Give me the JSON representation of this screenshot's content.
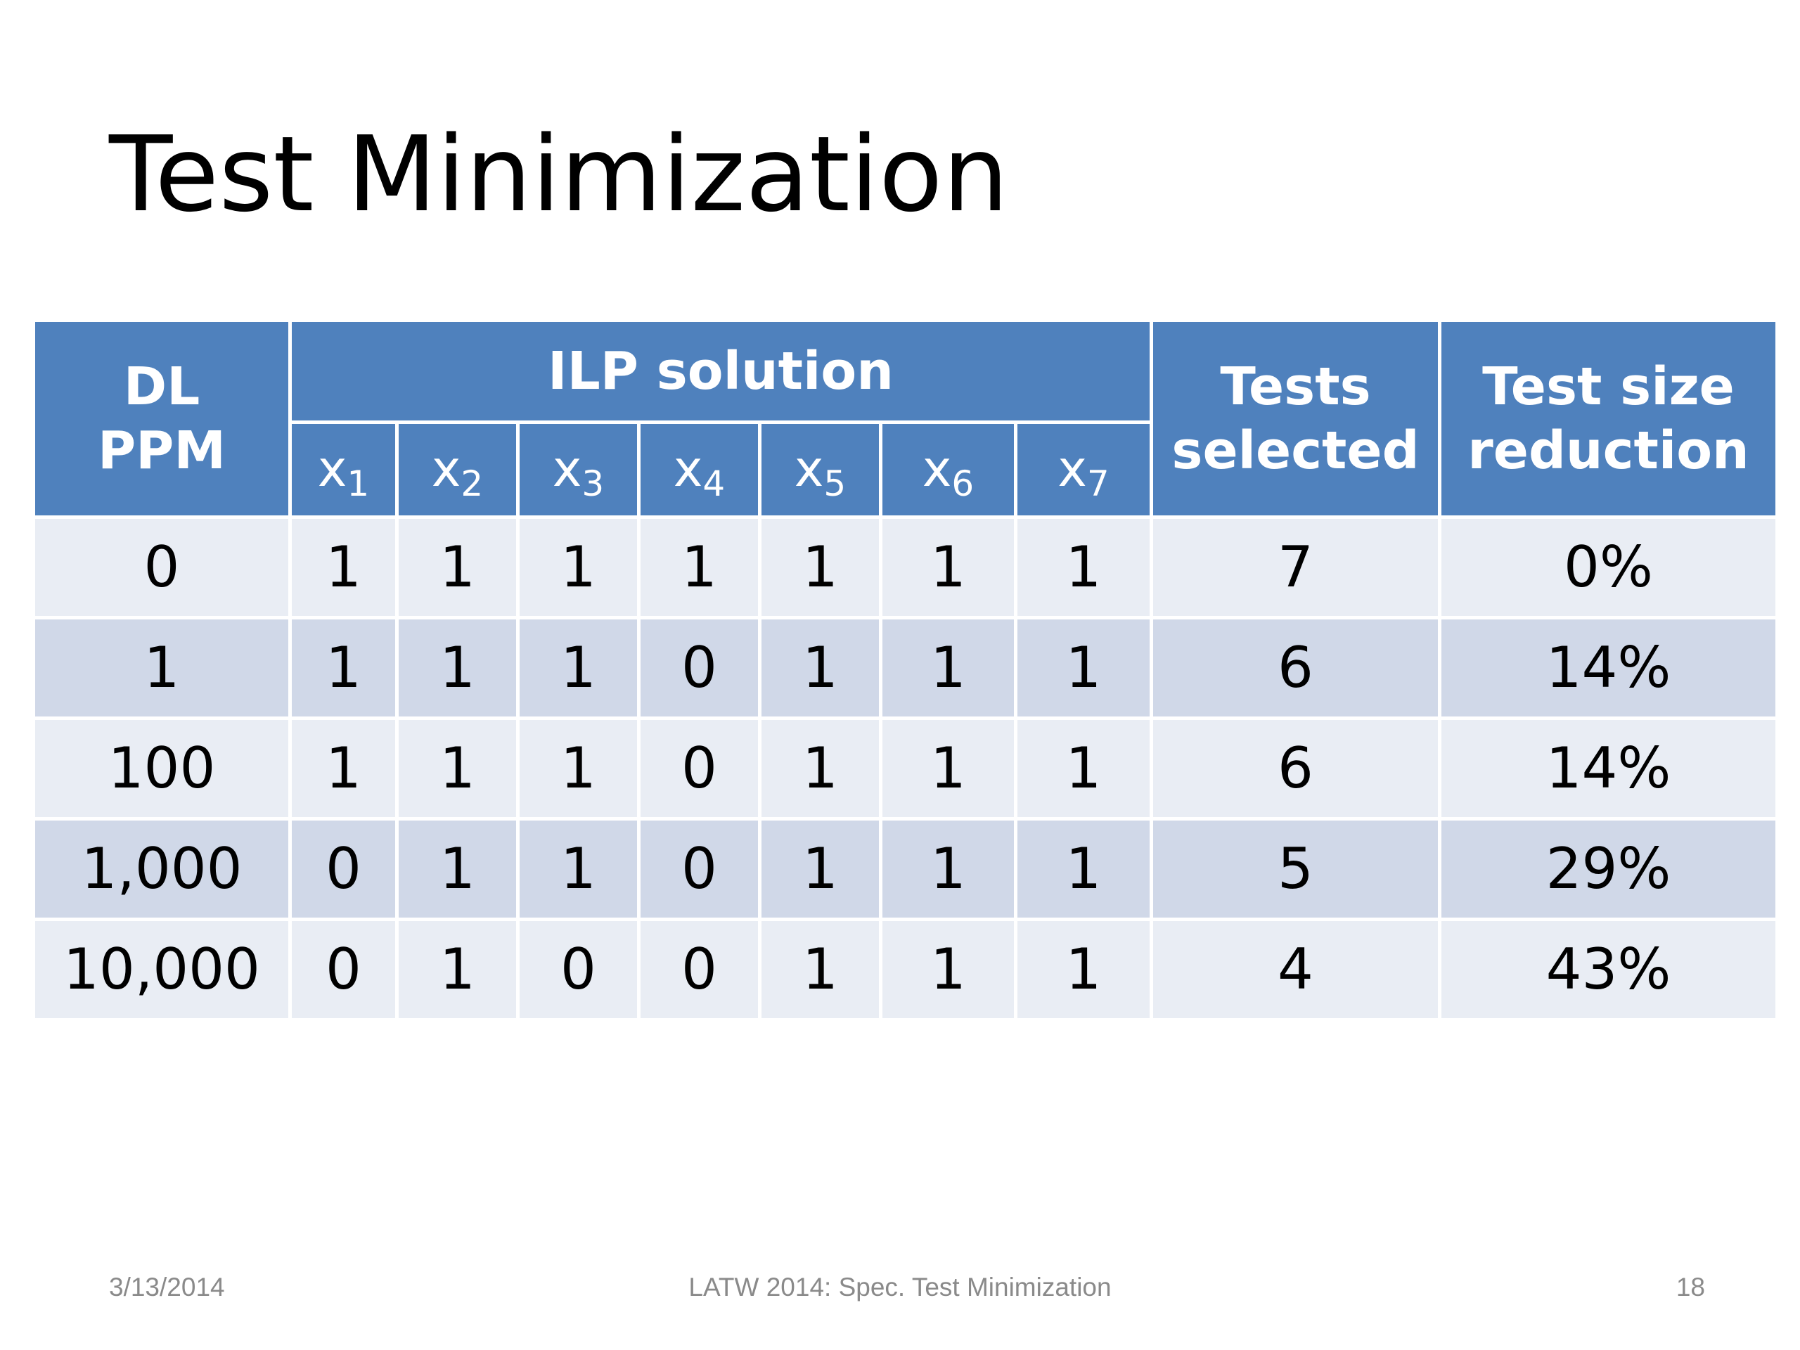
{
  "title": "Test Minimization",
  "table": {
    "headers": {
      "dl_ppm_line1": "DL",
      "dl_ppm_line2": "PPM",
      "ilp_solution": "ILP solution",
      "variables": [
        {
          "base": "x",
          "sub": "1"
        },
        {
          "base": "x",
          "sub": "2"
        },
        {
          "base": "x",
          "sub": "3"
        },
        {
          "base": "x",
          "sub": "4"
        },
        {
          "base": "x",
          "sub": "5"
        },
        {
          "base": "x",
          "sub": "6"
        },
        {
          "base": "x",
          "sub": "7"
        }
      ],
      "tests_selected_line1": "Tests",
      "tests_selected_line2": "selected",
      "test_size_reduction_line1": "Test size",
      "test_size_reduction_line2": "reduction"
    },
    "rows": [
      {
        "ppm": "0",
        "x": [
          "1",
          "1",
          "1",
          "1",
          "1",
          "1",
          "1"
        ],
        "tests": "7",
        "reduction": "0%"
      },
      {
        "ppm": "1",
        "x": [
          "1",
          "1",
          "1",
          "0",
          "1",
          "1",
          "1"
        ],
        "tests": "6",
        "reduction": "14%"
      },
      {
        "ppm": "100",
        "x": [
          "1",
          "1",
          "1",
          "0",
          "1",
          "1",
          "1"
        ],
        "tests": "6",
        "reduction": "14%"
      },
      {
        "ppm": "1,000",
        "x": [
          "0",
          "1",
          "1",
          "0",
          "1",
          "1",
          "1"
        ],
        "tests": "5",
        "reduction": "29%"
      },
      {
        "ppm": "10,000",
        "x": [
          "0",
          "1",
          "0",
          "0",
          "1",
          "1",
          "1"
        ],
        "tests": "4",
        "reduction": "43%"
      }
    ]
  },
  "footer": {
    "date": "3/13/2014",
    "center": "LATW 2014: Spec. Test Minimization",
    "page": "18"
  },
  "colors": {
    "header_bg": "#4f81bd",
    "row_light": "#e9edf4",
    "row_dark": "#d0d8e8",
    "footer_text": "#8a8a8a"
  }
}
